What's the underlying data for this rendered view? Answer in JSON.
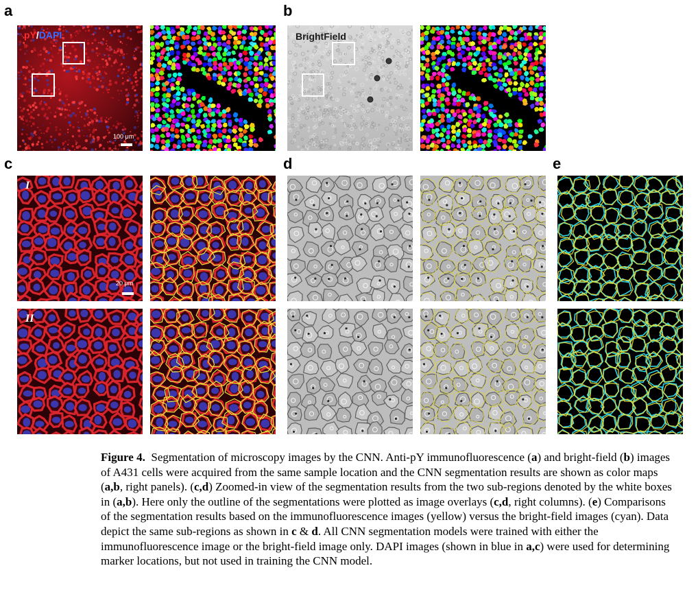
{
  "panel_labels": {
    "a": "a",
    "b": "b",
    "c": "c",
    "d": "d",
    "e": "e"
  },
  "panel_a": {
    "channel_pY": "pY",
    "channel_sep": "/",
    "channel_DAPI": "DAPI",
    "scale_bar": "100 μm"
  },
  "panel_b": {
    "label": "BrightField"
  },
  "panel_c": {
    "row1": "I",
    "row2": "II",
    "scale_bar": "20 μm"
  },
  "colors": {
    "pY": "#ff2a2a",
    "DAPI": "#3b6cff",
    "immunofluorescence_outline": "#e8e03a",
    "brightfield_outline": "#2fd0e0"
  },
  "caption": {
    "title": "Figure 4.",
    "s1": "Segmentation of microscopy images by the CNN. Anti-pY immunofluorescence (",
    "a1": "a",
    "s2": ") and bright-field (",
    "b1": "b",
    "s3": ") images of A431 cells were acquired from the same sample location and the CNN segmentation results are shown as color maps (",
    "ab1": "a,b",
    "s4": ", right panels). (",
    "cd1": "c,d",
    "s5": ") Zoomed-in view of the segmentation results from the two sub-regions denoted by the white boxes in (",
    "ab2": "a,b",
    "s6": "). Here only the outline of the segmentations were plotted as image overlays (",
    "cd2": "c,d",
    "s7": ", right columns). (",
    "e1": "e",
    "s8": ") Comparisons of the segmentation results based on the immunofluorescence images (yellow) versus the bright-field images (cyan). Data depict the same sub-regions as shown in ",
    "c1": "c",
    "s9": " & ",
    "d1": "d",
    "s10": ". All CNN segmentation models were trained with either the immunofluorescence image or the bright-field image only. DAPI images (shown in blue in ",
    "ac1": "a,c",
    "s11": ") were used for determining marker locations, but not used in training the CNN model."
  }
}
